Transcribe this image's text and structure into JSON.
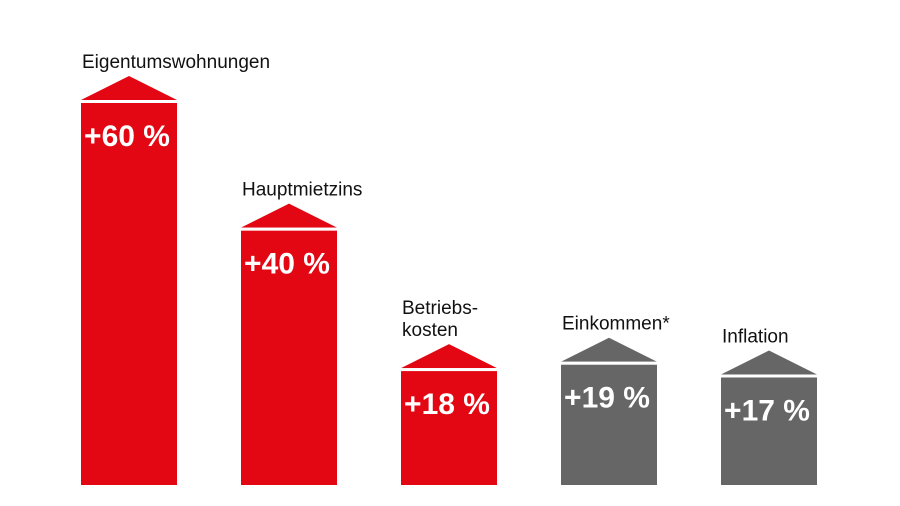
{
  "chart_data": {
    "type": "bar",
    "categories": [
      [
        "Eigentumswohnungen"
      ],
      [
        "Hauptmietzins"
      ],
      [
        "Betriebs-",
        "kosten"
      ],
      [
        "Einkommen*"
      ],
      [
        "Inflation"
      ]
    ],
    "values": [
      60,
      40,
      18,
      19,
      17
    ],
    "value_labels": [
      "+60 %",
      "+40 %",
      "+18 %",
      "+19 %",
      "+17 %"
    ],
    "bar_colors": [
      "#e30613",
      "#e30613",
      "#e30613",
      "#666666",
      "#666666"
    ],
    "ylim": [
      0,
      60
    ],
    "title": "",
    "xlabel": "",
    "ylabel": "",
    "grid": false,
    "legend": "none"
  }
}
